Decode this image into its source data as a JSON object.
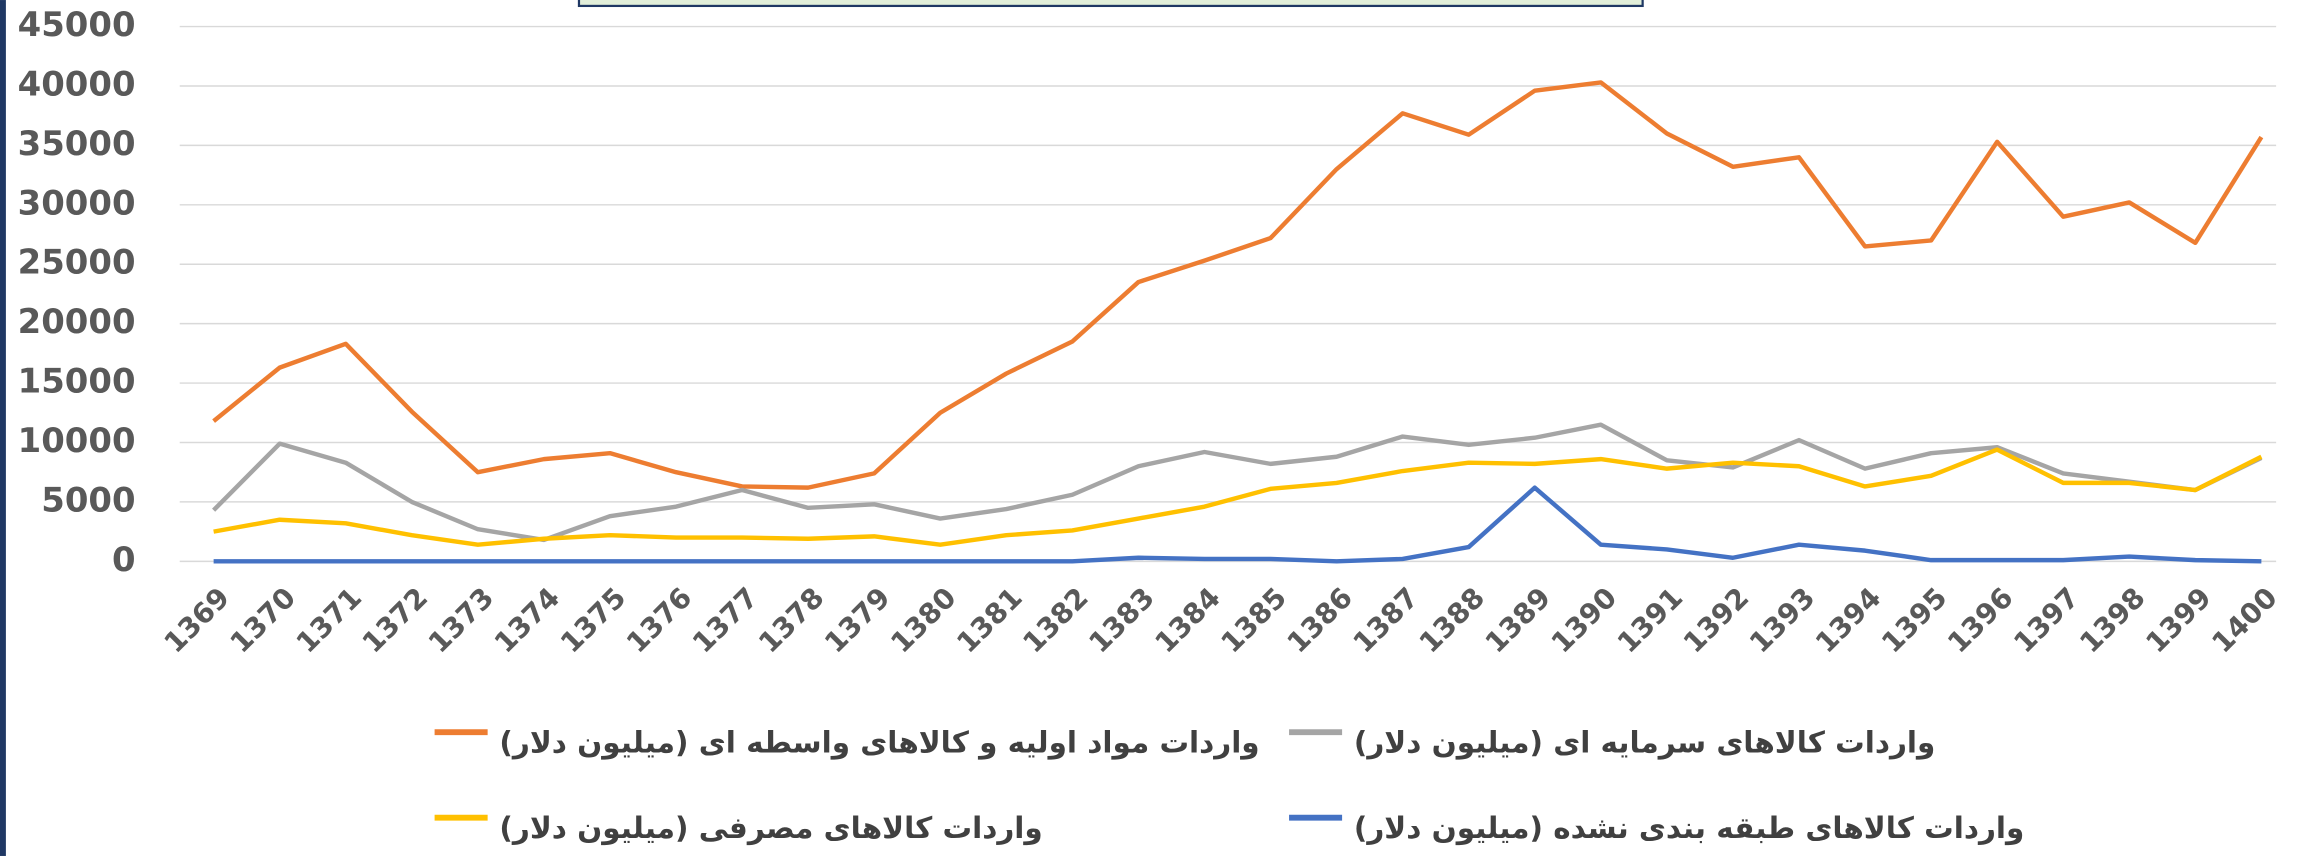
{
  "chart_data": {
    "type": "line",
    "categories": [
      "1369",
      "1370",
      "1371",
      "1372",
      "1373",
      "1374",
      "1375",
      "1376",
      "1377",
      "1378",
      "1379",
      "1380",
      "1381",
      "1382",
      "1383",
      "1384",
      "1385",
      "1386",
      "1387",
      "1388",
      "1389",
      "1390",
      "1391",
      "1392",
      "1393",
      "1394",
      "1395",
      "1396",
      "1397",
      "1398",
      "1399",
      "1400"
    ],
    "series": [
      {
        "name": "واردات مواد اولیه و کالاهای واسطه ای (میلیون دلار)",
        "color": "#ed7d31",
        "values": [
          11800,
          16300,
          18300,
          12600,
          7500,
          8600,
          9100,
          7500,
          6300,
          6200,
          7400,
          12500,
          15800,
          18500,
          23500,
          25300,
          27200,
          33000,
          37700,
          35900,
          39600,
          40300,
          36000,
          33200,
          34000,
          26500,
          27000,
          35300,
          29000,
          30200,
          26800,
          35700
        ]
      },
      {
        "name": "واردات کالاهای سرمایه ای (میلیون دلار)",
        "color": "#a5a5a5",
        "values": [
          4300,
          9900,
          8300,
          5000,
          2700,
          1800,
          3800,
          4600,
          6000,
          4500,
          4800,
          3600,
          4400,
          5600,
          8000,
          9200,
          8200,
          8800,
          10500,
          9800,
          10400,
          11500,
          8500,
          7900,
          10200,
          7800,
          9100,
          9600,
          7400,
          6700,
          6000,
          8700
        ]
      },
      {
        "name": "واردات کالاهای مصرفی (میلیون دلار)",
        "color": "#ffc000",
        "values": [
          2500,
          3500,
          3200,
          2200,
          1400,
          1900,
          2200,
          2000,
          2000,
          1900,
          2100,
          1400,
          2200,
          2600,
          3600,
          4600,
          6100,
          6600,
          7600,
          8300,
          8200,
          8600,
          7800,
          8300,
          8000,
          6300,
          7200,
          9400,
          6600,
          6600,
          6000,
          8800
        ]
      },
      {
        "name": "واردات کالاهای طبقه بندی نشده (میلیون دلار)",
        "color": "#4472c4",
        "values": [
          0,
          0,
          0,
          0,
          0,
          0,
          0,
          0,
          0,
          0,
          0,
          0,
          0,
          0,
          300,
          200,
          200,
          0,
          200,
          1200,
          6200,
          1400,
          1000,
          300,
          1400,
          900,
          100,
          100,
          100,
          400,
          100,
          0
        ]
      }
    ],
    "ylim": [
      0,
      45000
    ],
    "yticks": [
      0,
      5000,
      10000,
      15000,
      20000,
      25000,
      30000,
      35000,
      40000,
      45000
    ],
    "grid": true,
    "legend": "bottom"
  }
}
